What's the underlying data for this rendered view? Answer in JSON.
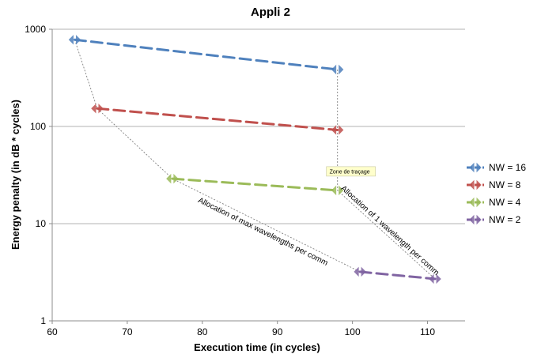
{
  "chart_data": {
    "type": "line",
    "title": "Appli 2",
    "xlabel": "Execution time (in cycles)",
    "ylabel": "Energy penalty (in dB * cycles)",
    "xlim": [
      60,
      115
    ],
    "ylim": [
      1,
      1000
    ],
    "y_scale": "log",
    "x_ticks": [
      "60",
      "70",
      "80",
      "90",
      "100",
      "110"
    ],
    "y_ticks": [
      "1",
      "10",
      "100",
      "1000"
    ],
    "grid": "horizontal",
    "legend_position": "right",
    "series": [
      {
        "name": "NW = 16",
        "color": "#4f81bd",
        "points": [
          [
            63,
            780
          ],
          [
            98,
            385
          ]
        ]
      },
      {
        "name": "NW = 8",
        "color": "#c0504d",
        "points": [
          [
            66,
            153
          ],
          [
            98,
            92
          ]
        ]
      },
      {
        "name": "NW = 4",
        "color": "#9bbb59",
        "points": [
          [
            76,
            29
          ],
          [
            98,
            22
          ]
        ]
      },
      {
        "name": "NW = 2",
        "color": "#8064a2",
        "points": [
          [
            101,
            3.2
          ],
          [
            111,
            2.7
          ]
        ]
      }
    ],
    "annotations": [
      {
        "text": "Allocation of max wavelengths per comm"
      },
      {
        "text": "Allocation of 1 wavelength per comm"
      }
    ],
    "tooltip": "Zone de traçage"
  }
}
